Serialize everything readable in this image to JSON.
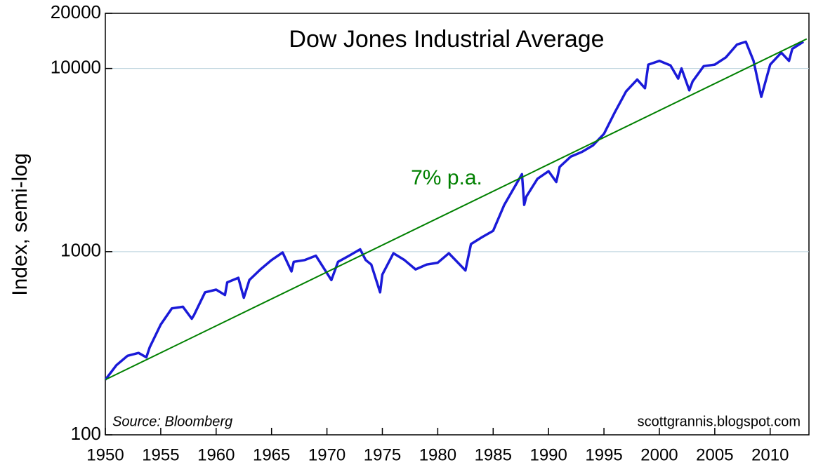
{
  "chart_data": {
    "type": "line",
    "title": "Dow Jones Industrial Average",
    "y_label": "Index, semi-log",
    "source": "Source: Bloomberg",
    "credit": "scottgrannis.blogspot.com",
    "annotation": "7% p.a.",
    "log_y": true,
    "grid": true,
    "xlim": [
      1950,
      2013.5
    ],
    "xticks": [
      1950,
      1955,
      1960,
      1965,
      1970,
      1975,
      1980,
      1985,
      1990,
      1995,
      2000,
      2005,
      2010
    ],
    "ylim": [
      100,
      20000
    ],
    "yticks": [
      100,
      1000,
      10000,
      20000
    ],
    "series": [
      {
        "name": "Dow Jones Industrial Average",
        "color": "#1a1ad8",
        "x": [
          1950,
          1951,
          1952,
          1953,
          1953.7,
          1954,
          1955,
          1956,
          1957,
          1957.8,
          1958,
          1959,
          1960,
          1960.8,
          1961,
          1962,
          1962.5,
          1963,
          1964,
          1965,
          1966,
          1966.8,
          1967,
          1968,
          1969,
          1970.4,
          1971,
          1972,
          1973,
          1973.5,
          1974,
          1974.8,
          1975,
          1976,
          1977,
          1978,
          1979,
          1980,
          1981,
          1982.5,
          1983,
          1984,
          1985,
          1986,
          1987.6,
          1987.8,
          1988,
          1989,
          1990,
          1990.7,
          1991,
          1992,
          1993,
          1994,
          1995,
          1996,
          1997,
          1998,
          1998.7,
          1999,
          2000,
          2001,
          2001.7,
          2002,
          2002.7,
          2003,
          2004,
          2005,
          2006,
          2007,
          2007.8,
          2008.5,
          2009.2,
          2010,
          2011,
          2011.7,
          2012,
          2013
        ],
        "values": [
          200,
          240,
          270,
          280,
          265,
          300,
          400,
          490,
          500,
          430,
          450,
          600,
          620,
          580,
          680,
          720,
          560,
          700,
          800,
          900,
          990,
          780,
          880,
          900,
          950,
          700,
          880,
          950,
          1030,
          900,
          850,
          600,
          750,
          980,
          900,
          800,
          850,
          870,
          980,
          790,
          1100,
          1200,
          1300,
          1800,
          2650,
          1800,
          2000,
          2500,
          2750,
          2400,
          2900,
          3300,
          3500,
          3800,
          4400,
          5800,
          7500,
          8700,
          7800,
          10500,
          11000,
          10400,
          8800,
          10000,
          7600,
          8500,
          10300,
          10500,
          11500,
          13500,
          14000,
          11000,
          7000,
          10500,
          12200,
          11000,
          12800,
          14000
        ]
      },
      {
        "name": "7% p.a.",
        "color": "#008000",
        "x": [
          1950,
          2013.3
        ],
        "values": [
          200,
          14500
        ]
      }
    ]
  }
}
